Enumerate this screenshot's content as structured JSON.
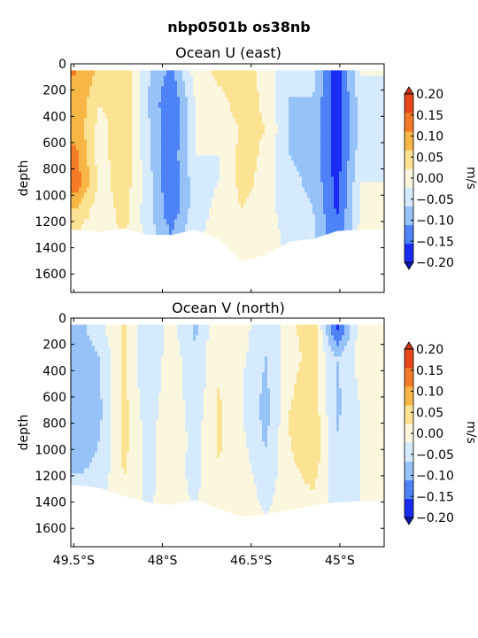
{
  "figure": {
    "suptitle": "nbp0501b os38nb"
  },
  "colors": {
    "levels": [
      -0.2,
      -0.15,
      -0.1,
      -0.05,
      0.0,
      0.05,
      0.1,
      0.15,
      0.2
    ],
    "bins": [
      "#1a2cf4",
      "#4d83f6",
      "#97c2f8",
      "#d6eafd",
      "#fbf7de",
      "#fce393",
      "#f8b646",
      "#f57c26",
      "#e6461a"
    ],
    "under": "#0a18b0",
    "over": "#c83214"
  },
  "chart_data": [
    {
      "type": "heatmap",
      "title": "Ocean U (east)",
      "xlabel": "",
      "ylabel": "depth",
      "colorbar_label": "m/s",
      "colorbar_ticks": [
        "0.20",
        "0.15",
        "0.10",
        "0.05",
        "0.00",
        "−0.05",
        "−0.10",
        "−0.15",
        "−0.20"
      ],
      "yticks": [
        "0",
        "200",
        "400",
        "600",
        "800",
        "1000",
        "1200",
        "1400",
        "1600"
      ],
      "xticks": [],
      "xlim": [
        49.55,
        44.25
      ],
      "ylim": [
        1740,
        0
      ],
      "x_latitude_S": [
        49.45,
        49.05,
        48.65,
        48.25,
        47.85,
        47.45,
        47.05,
        46.65,
        46.25,
        45.85,
        45.45,
        45.05,
        44.65
      ],
      "depth": [
        100,
        300,
        500,
        700,
        900,
        1100,
        1300,
        1500
      ],
      "bottom_depth": [
        1260,
        1280,
        1250,
        1300,
        1300,
        1260,
        1330,
        1500,
        1450,
        1350,
        1330,
        1270,
        1260
      ],
      "values_m_s": [
        [
          0.15,
          0.08,
          0.1,
          -0.04,
          -0.12,
          0.02,
          0.06,
          0.08,
          0.03,
          -0.05,
          -0.03,
          -0.18,
          0.0
        ],
        [
          0.14,
          0.05,
          0.1,
          -0.05,
          -0.15,
          0.0,
          0.03,
          0.08,
          0.04,
          -0.05,
          -0.06,
          -0.18,
          -0.03
        ],
        [
          0.14,
          0.02,
          0.1,
          -0.04,
          -0.15,
          0.0,
          0.0,
          0.06,
          0.05,
          -0.06,
          -0.06,
          -0.18,
          -0.03
        ],
        [
          0.16,
          0.02,
          0.1,
          -0.04,
          -0.14,
          0.0,
          0.0,
          0.07,
          0.04,
          -0.05,
          -0.06,
          -0.18,
          -0.02
        ],
        [
          0.18,
          0.03,
          0.08,
          -0.02,
          -0.15,
          -0.02,
          0.0,
          0.07,
          0.03,
          -0.04,
          -0.06,
          -0.17,
          0.0
        ],
        [
          0.1,
          0.02,
          0.07,
          -0.03,
          -0.14,
          -0.02,
          0.01,
          0.05,
          0.02,
          -0.03,
          -0.05,
          -0.16,
          0.0
        ],
        [
          0.04,
          0.01,
          0.06,
          -0.02,
          -0.1,
          -0.01,
          0.02,
          0.04,
          0.03,
          -0.02,
          -0.04,
          -0.14,
          0.02
        ],
        [
          0.0,
          0.0,
          0.02,
          0.0,
          -0.05,
          0.0,
          0.02,
          0.03,
          0.03,
          -0.01,
          -0.02,
          -0.1,
          0.02
        ]
      ]
    },
    {
      "type": "heatmap",
      "title": "Ocean V (north)",
      "xlabel": "",
      "ylabel": "depth",
      "colorbar_label": "m/s",
      "colorbar_ticks": [
        "0.20",
        "0.15",
        "0.10",
        "0.05",
        "0.00",
        "−0.05",
        "−0.10",
        "−0.15",
        "−0.20"
      ],
      "yticks": [
        "0",
        "200",
        "400",
        "600",
        "800",
        "1000",
        "1200",
        "1400",
        "1600"
      ],
      "xticks": [
        "49.5°S",
        "48°S",
        "46.5°S",
        "45°S"
      ],
      "xlim": [
        49.55,
        44.25
      ],
      "ylim": [
        1740,
        0
      ],
      "x_latitude_S": [
        49.45,
        49.05,
        48.65,
        48.25,
        47.85,
        47.45,
        47.05,
        46.65,
        46.25,
        45.85,
        45.45,
        45.05,
        44.65
      ],
      "depth": [
        100,
        300,
        500,
        700,
        900,
        1100,
        1300,
        1500
      ],
      "bottom_depth": [
        1270,
        1290,
        1350,
        1400,
        1420,
        1380,
        1450,
        1510,
        1490,
        1460,
        1420,
        1400,
        1390
      ],
      "values_m_s": [
        [
          -0.07,
          -0.02,
          0.06,
          -0.04,
          0.02,
          -0.06,
          0.04,
          0.02,
          -0.04,
          0.03,
          0.09,
          -0.16,
          0.03
        ],
        [
          -0.08,
          -0.05,
          0.06,
          -0.05,
          0.03,
          -0.04,
          0.05,
          0.01,
          -0.05,
          0.03,
          0.07,
          -0.05,
          0.02
        ],
        [
          -0.09,
          -0.05,
          0.06,
          -0.04,
          0.03,
          -0.04,
          0.05,
          0.0,
          -0.06,
          0.04,
          0.08,
          -0.06,
          0.01
        ],
        [
          -0.09,
          -0.06,
          0.07,
          -0.03,
          0.04,
          -0.03,
          0.06,
          0.0,
          -0.07,
          0.05,
          0.08,
          -0.06,
          0.0
        ],
        [
          -0.08,
          -0.05,
          0.07,
          -0.02,
          0.04,
          -0.02,
          0.06,
          0.01,
          -0.06,
          0.05,
          0.1,
          -0.05,
          0.0
        ],
        [
          -0.07,
          -0.04,
          0.06,
          -0.02,
          0.03,
          -0.02,
          0.05,
          0.02,
          -0.04,
          0.04,
          0.08,
          -0.04,
          0.0
        ],
        [
          -0.03,
          -0.02,
          0.04,
          -0.01,
          0.02,
          -0.01,
          0.04,
          0.03,
          -0.02,
          0.03,
          0.05,
          -0.03,
          0.0
        ],
        [
          0.0,
          0.0,
          0.02,
          0.0,
          0.02,
          0.0,
          0.02,
          0.02,
          0.0,
          0.02,
          0.03,
          -0.02,
          0.0
        ]
      ]
    }
  ]
}
